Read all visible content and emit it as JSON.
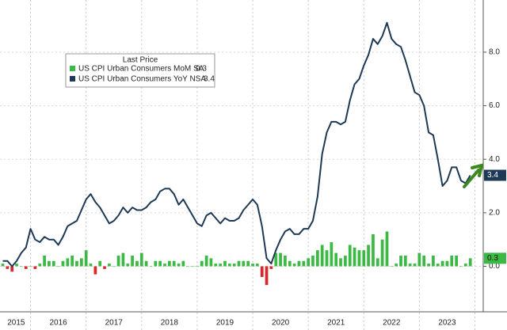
{
  "chart_data": {
    "type": "bar+line",
    "legend_title": "Last Price",
    "x": [
      2015.5,
      2015.583,
      2015.667,
      2015.75,
      2015.833,
      2015.917,
      2016,
      2016.083,
      2016.167,
      2016.25,
      2016.333,
      2016.417,
      2016.5,
      2016.583,
      2016.667,
      2016.75,
      2016.833,
      2016.917,
      2017,
      2017.083,
      2017.167,
      2017.25,
      2017.333,
      2017.417,
      2017.5,
      2017.583,
      2017.667,
      2017.75,
      2017.833,
      2017.917,
      2018,
      2018.083,
      2018.167,
      2018.25,
      2018.333,
      2018.417,
      2018.5,
      2018.583,
      2018.667,
      2018.75,
      2018.833,
      2018.917,
      2019,
      2019.083,
      2019.167,
      2019.25,
      2019.333,
      2019.417,
      2019.5,
      2019.583,
      2019.667,
      2019.75,
      2019.833,
      2019.917,
      2020,
      2020.083,
      2020.167,
      2020.25,
      2020.333,
      2020.417,
      2020.5,
      2020.583,
      2020.667,
      2020.75,
      2020.833,
      2020.917,
      2021,
      2021.083,
      2021.167,
      2021.25,
      2021.333,
      2021.417,
      2021.5,
      2021.583,
      2021.667,
      2021.75,
      2021.833,
      2021.917,
      2022,
      2022.083,
      2022.167,
      2022.25,
      2022.333,
      2022.417,
      2022.5,
      2022.583,
      2022.667,
      2022.75,
      2022.833,
      2022.917,
      2023,
      2023.083,
      2023.167,
      2023.25,
      2023.333,
      2023.417,
      2023.5,
      2023.583,
      2023.667,
      2023.75,
      2023.833,
      2023.917
    ],
    "series": [
      {
        "name": "US CPI Urban Consumers MoM SA",
        "type": "bar",
        "color": "#3cb944",
        "negative_color": "#d8282a",
        "values": [
          0.1,
          -0.1,
          -0.2,
          0.1,
          0.0,
          -0.1,
          0.0,
          -0.1,
          0.1,
          0.4,
          0.2,
          0.2,
          0.0,
          0.2,
          0.3,
          0.4,
          0.2,
          0.3,
          0.6,
          0.1,
          -0.3,
          0.2,
          -0.1,
          0.1,
          0.0,
          0.4,
          0.5,
          0.1,
          0.4,
          0.2,
          0.5,
          0.2,
          0.0,
          0.2,
          0.2,
          0.1,
          0.2,
          0.2,
          0.1,
          0.2,
          0.0,
          0.0,
          0.0,
          0.2,
          0.4,
          0.3,
          0.1,
          0.1,
          0.2,
          0.1,
          0.1,
          0.2,
          0.2,
          0.2,
          0.1,
          0.1,
          -0.4,
          -0.7,
          -0.1,
          0.5,
          0.5,
          0.4,
          0.2,
          0.1,
          0.2,
          0.2,
          0.3,
          0.4,
          0.6,
          0.8,
          0.6,
          0.9,
          0.5,
          0.3,
          0.4,
          0.8,
          0.7,
          0.6,
          0.6,
          0.8,
          1.2,
          0.3,
          1.0,
          1.3,
          0.0,
          0.1,
          0.4,
          0.4,
          0.1,
          0.1,
          0.5,
          0.4,
          0.1,
          0.4,
          0.1,
          0.2,
          0.2,
          0.4,
          0.4,
          0.0,
          0.1,
          0.3
        ]
      },
      {
        "name": "US CPI Urban Consumers YoY NSA",
        "type": "line",
        "color": "#1d3956",
        "values": [
          0.2,
          0.2,
          0.0,
          0.2,
          0.5,
          0.7,
          1.4,
          1.0,
          0.9,
          1.1,
          1.0,
          1.0,
          0.8,
          1.1,
          1.5,
          1.6,
          1.7,
          2.1,
          2.5,
          2.7,
          2.4,
          2.2,
          1.9,
          1.6,
          1.7,
          1.9,
          2.2,
          2.0,
          2.2,
          2.1,
          2.1,
          2.2,
          2.4,
          2.5,
          2.8,
          2.9,
          2.9,
          2.7,
          2.3,
          2.5,
          2.2,
          1.9,
          1.6,
          1.5,
          1.9,
          2.0,
          1.8,
          1.6,
          1.8,
          1.7,
          1.7,
          1.8,
          2.1,
          2.3,
          2.5,
          2.3,
          1.5,
          0.3,
          0.1,
          0.6,
          1.0,
          1.3,
          1.4,
          1.2,
          1.2,
          1.4,
          1.4,
          1.7,
          2.6,
          4.2,
          5.0,
          5.4,
          5.4,
          5.3,
          5.4,
          6.2,
          6.8,
          7.0,
          7.5,
          7.9,
          8.5,
          8.3,
          8.6,
          9.1,
          8.5,
          8.3,
          8.2,
          7.7,
          7.1,
          6.5,
          6.4,
          6.0,
          5.0,
          4.9,
          4.0,
          3.0,
          3.2,
          3.7,
          3.7,
          3.2,
          3.1,
          3.4
        ]
      }
    ],
    "xlim": [
      2015.45,
      2024.15
    ],
    "xticks": [
      {
        "value": 2015.74,
        "label": "2015"
      },
      {
        "value": 2016.5,
        "label": "2016"
      },
      {
        "value": 2017.5,
        "label": "2017"
      },
      {
        "value": 2018.5,
        "label": "2018"
      },
      {
        "value": 2019.5,
        "label": "2019"
      },
      {
        "value": 2020.5,
        "label": "2020"
      },
      {
        "value": 2021.5,
        "label": "2021"
      },
      {
        "value": 2022.5,
        "label": "2022"
      },
      {
        "value": 2023.5,
        "label": "2023"
      }
    ],
    "xgrid": [
      2016,
      2017,
      2018,
      2019,
      2020,
      2021,
      2022,
      2023,
      2024
    ],
    "ylim": [
      -1.7,
      9.95
    ],
    "yticks": [
      {
        "value": 0,
        "label": "0.0"
      },
      {
        "value": 2,
        "label": "2.0"
      },
      {
        "value": 4,
        "label": "4.0"
      },
      {
        "value": 6,
        "label": "6.0"
      },
      {
        "value": 8,
        "label": "8.0"
      }
    ],
    "grid": true
  }
}
